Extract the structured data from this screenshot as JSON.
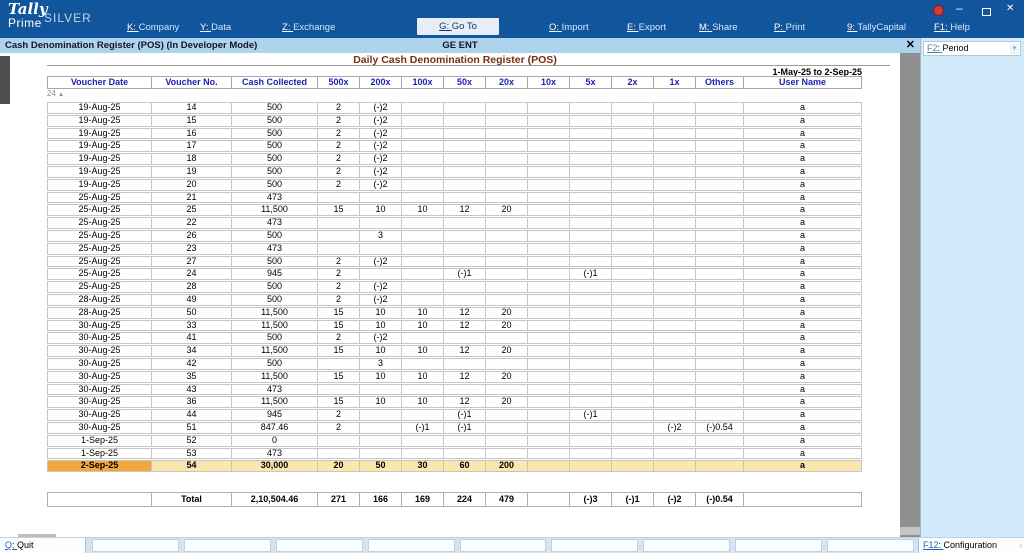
{
  "colors": {
    "titlebar_blue": "#11559d",
    "subtitle_bar_blue": "#aed3ec",
    "active_menu_bg": "#e7eef7",
    "report_title_text": "#772f10",
    "table_header_text": "#1f1fae",
    "highlight_row_yellow": "#fbe7ae",
    "highlight_date_cell_orange": "#f1a73c",
    "right_panel_blue": "#d2ebfb",
    "hotkey_blue": "#1b63b8",
    "notification_red": "#d43b33"
  },
  "titlebar": {
    "logo_line1": "Tally",
    "logo_line2": "Prime",
    "edition": "SILVER",
    "menus": [
      {
        "key": "K",
        "label": "Company",
        "active": false
      },
      {
        "key": "Y",
        "label": "Data",
        "active": false
      },
      {
        "key": "Z",
        "label": "Exchange",
        "active": false
      },
      {
        "key": "G",
        "label": "Go To",
        "active": true
      },
      {
        "key": "O",
        "label": "Import",
        "active": false
      },
      {
        "key": "E",
        "label": "Export",
        "active": false
      },
      {
        "key": "M",
        "label": "Share",
        "active": false
      },
      {
        "key": "P",
        "label": "Print",
        "active": false
      },
      {
        "key": "9",
        "label": "TallyCapital",
        "active": false
      },
      {
        "key": "F1",
        "label": "Help",
        "active": false
      }
    ],
    "window": {
      "minimize": "–",
      "close": "✕"
    }
  },
  "subtitlebar": {
    "title": "Cash Denomination Register (POS) (In Developer Mode)",
    "company": "GE ENT",
    "close_icon": "✕"
  },
  "right_panel": {
    "period_key": "F2",
    "period_label": "Period",
    "chevron_icon": "▾"
  },
  "report": {
    "title": "Daily Cash Denomination Register (POS)",
    "period": "1-May-25 to 2-Sep-25",
    "scroll_indicator": "24",
    "scroll_up_icon": "▲",
    "columns": [
      "Voucher Date",
      "Voucher No.",
      "Cash Collected",
      "500x",
      "200x",
      "100x",
      "50x",
      "20x",
      "10x",
      "5x",
      "2x",
      "1x",
      "Others",
      "User Name"
    ],
    "rows": [
      [
        "19-Aug-25",
        "14",
        "500",
        "2",
        "(-)2",
        "",
        "",
        "",
        "",
        "",
        "",
        "",
        "",
        "a"
      ],
      [
        "19-Aug-25",
        "15",
        "500",
        "2",
        "(-)2",
        "",
        "",
        "",
        "",
        "",
        "",
        "",
        "",
        "a"
      ],
      [
        "19-Aug-25",
        "16",
        "500",
        "2",
        "(-)2",
        "",
        "",
        "",
        "",
        "",
        "",
        "",
        "",
        "a"
      ],
      [
        "19-Aug-25",
        "17",
        "500",
        "2",
        "(-)2",
        "",
        "",
        "",
        "",
        "",
        "",
        "",
        "",
        "a"
      ],
      [
        "19-Aug-25",
        "18",
        "500",
        "2",
        "(-)2",
        "",
        "",
        "",
        "",
        "",
        "",
        "",
        "",
        "a"
      ],
      [
        "19-Aug-25",
        "19",
        "500",
        "2",
        "(-)2",
        "",
        "",
        "",
        "",
        "",
        "",
        "",
        "",
        "a"
      ],
      [
        "19-Aug-25",
        "20",
        "500",
        "2",
        "(-)2",
        "",
        "",
        "",
        "",
        "",
        "",
        "",
        "",
        "a"
      ],
      [
        "25-Aug-25",
        "21",
        "473",
        "",
        "",
        "",
        "",
        "",
        "",
        "",
        "",
        "",
        "",
        "a"
      ],
      [
        "25-Aug-25",
        "25",
        "11,500",
        "15",
        "10",
        "10",
        "12",
        "20",
        "",
        "",
        "",
        "",
        "",
        "a"
      ],
      [
        "25-Aug-25",
        "22",
        "473",
        "",
        "",
        "",
        "",
        "",
        "",
        "",
        "",
        "",
        "",
        "a"
      ],
      [
        "25-Aug-25",
        "26",
        "500",
        "",
        "3",
        "",
        "",
        "",
        "",
        "",
        "",
        "",
        "",
        "a"
      ],
      [
        "25-Aug-25",
        "23",
        "473",
        "",
        "",
        "",
        "",
        "",
        "",
        "",
        "",
        "",
        "",
        "a"
      ],
      [
        "25-Aug-25",
        "27",
        "500",
        "2",
        "(-)2",
        "",
        "",
        "",
        "",
        "",
        "",
        "",
        "",
        "a"
      ],
      [
        "25-Aug-25",
        "24",
        "945",
        "2",
        "",
        "",
        "(-)1",
        "",
        "",
        "(-)1",
        "",
        "",
        "",
        "a"
      ],
      [
        "25-Aug-25",
        "28",
        "500",
        "2",
        "(-)2",
        "",
        "",
        "",
        "",
        "",
        "",
        "",
        "",
        "a"
      ],
      [
        "28-Aug-25",
        "49",
        "500",
        "2",
        "(-)2",
        "",
        "",
        "",
        "",
        "",
        "",
        "",
        "",
        "a"
      ],
      [
        "28-Aug-25",
        "50",
        "11,500",
        "15",
        "10",
        "10",
        "12",
        "20",
        "",
        "",
        "",
        "",
        "",
        "a"
      ],
      [
        "30-Aug-25",
        "33",
        "11,500",
        "15",
        "10",
        "10",
        "12",
        "20",
        "",
        "",
        "",
        "",
        "",
        "a"
      ],
      [
        "30-Aug-25",
        "41",
        "500",
        "2",
        "(-)2",
        "",
        "",
        "",
        "",
        "",
        "",
        "",
        "",
        "a"
      ],
      [
        "30-Aug-25",
        "34",
        "11,500",
        "15",
        "10",
        "10",
        "12",
        "20",
        "",
        "",
        "",
        "",
        "",
        "a"
      ],
      [
        "30-Aug-25",
        "42",
        "500",
        "",
        "3",
        "",
        "",
        "",
        "",
        "",
        "",
        "",
        "",
        "a"
      ],
      [
        "30-Aug-25",
        "35",
        "11,500",
        "15",
        "10",
        "10",
        "12",
        "20",
        "",
        "",
        "",
        "",
        "",
        "a"
      ],
      [
        "30-Aug-25",
        "43",
        "473",
        "",
        "",
        "",
        "",
        "",
        "",
        "",
        "",
        "",
        "",
        "a"
      ],
      [
        "30-Aug-25",
        "36",
        "11,500",
        "15",
        "10",
        "10",
        "12",
        "20",
        "",
        "",
        "",
        "",
        "",
        "a"
      ],
      [
        "30-Aug-25",
        "44",
        "945",
        "2",
        "",
        "",
        "(-)1",
        "",
        "",
        "(-)1",
        "",
        "",
        "",
        "a"
      ],
      [
        "30-Aug-25",
        "51",
        "847.46",
        "2",
        "",
        "(-)1",
        "(-)1",
        "",
        "",
        "",
        "",
        "(-)2",
        "(-)0.54",
        "a"
      ],
      [
        "1-Sep-25",
        "52",
        "0",
        "",
        "",
        "",
        "",
        "",
        "",
        "",
        "",
        "",
        "",
        "a"
      ],
      [
        "1-Sep-25",
        "53",
        "473",
        "",
        "",
        "",
        "",
        "",
        "",
        "",
        "",
        "",
        "",
        "a"
      ],
      [
        "2-Sep-25",
        "54",
        "30,000",
        "20",
        "50",
        "30",
        "60",
        "200",
        "",
        "",
        "",
        "",
        "",
        "a"
      ]
    ],
    "highlighted_row_index": 28,
    "total_row": [
      "",
      "Total",
      "2,10,504.46",
      "271",
      "166",
      "169",
      "224",
      "479",
      "",
      "(-)3",
      "(-)1",
      "(-)2",
      "(-)0.54",
      ""
    ]
  },
  "bottombar": {
    "quit_key": "Q",
    "quit_label": "Quit",
    "config_key": "F12",
    "config_label": "Configuration",
    "chevron_icon": "›"
  }
}
